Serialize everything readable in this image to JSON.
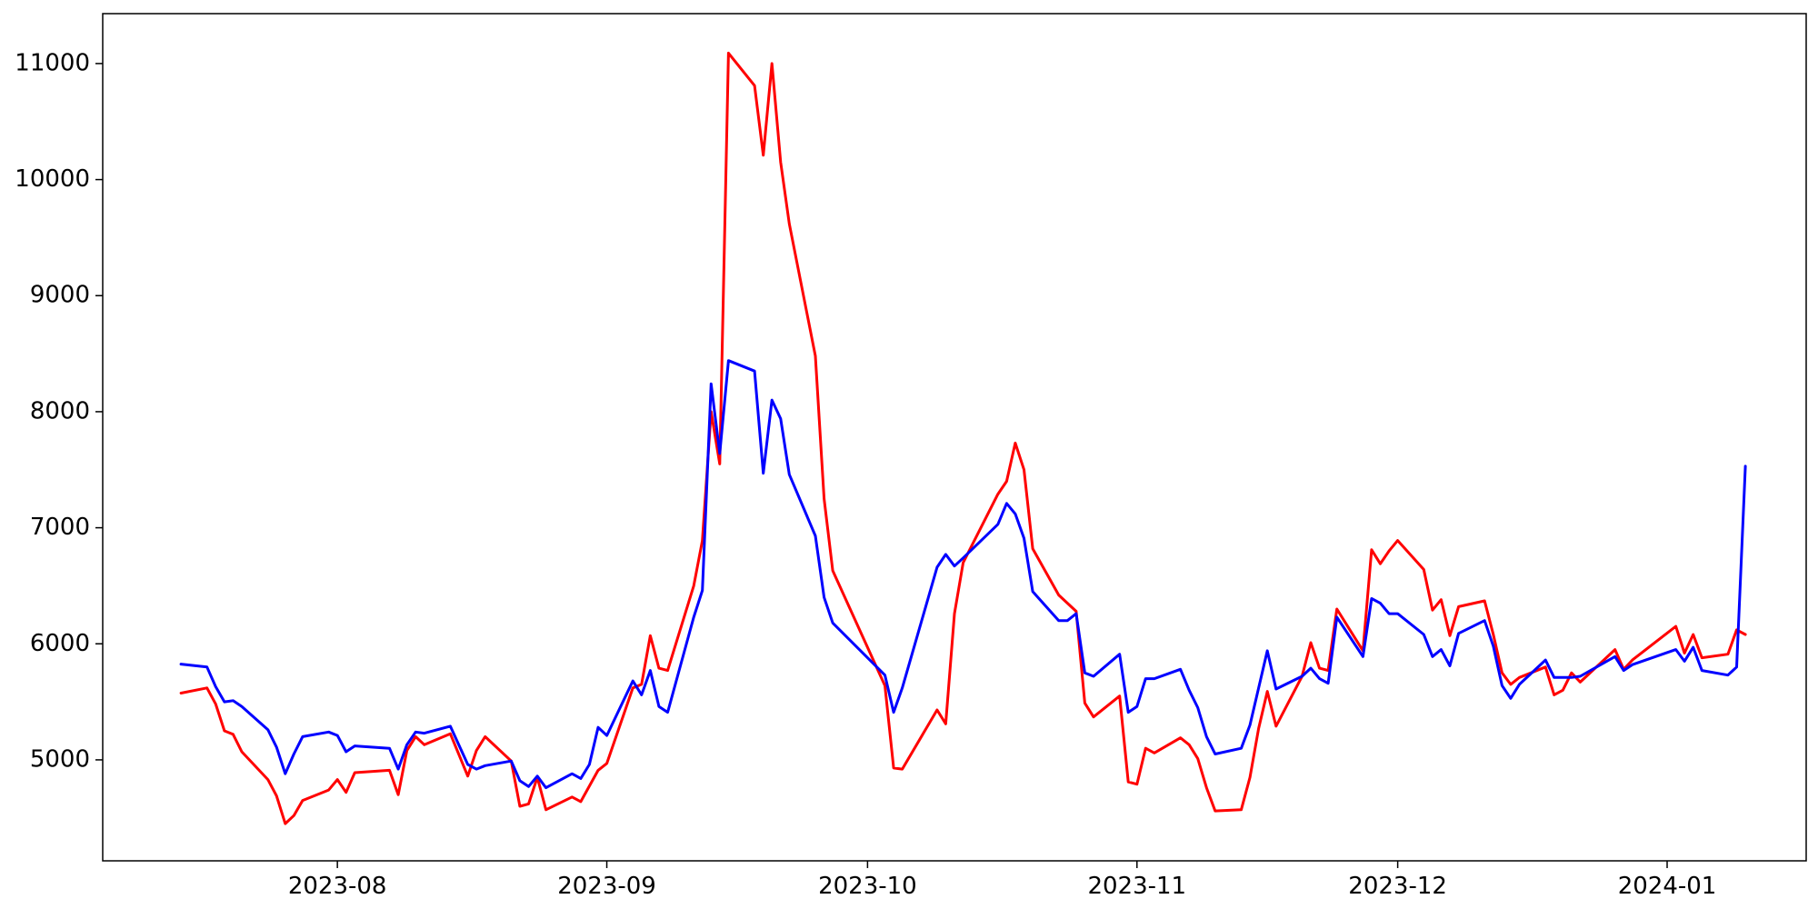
{
  "chart_data": {
    "type": "line",
    "title": "",
    "xlabel": "",
    "ylabel": "",
    "x_axis": {
      "type": "date",
      "range": [
        "2023-07-05",
        "2024-01-17"
      ],
      "ticks": [
        {
          "date": "2023-08-01",
          "label": "2023-08"
        },
        {
          "date": "2023-09-01",
          "label": "2023-09"
        },
        {
          "date": "2023-10-01",
          "label": "2023-10"
        },
        {
          "date": "2023-11-01",
          "label": "2023-11"
        },
        {
          "date": "2023-12-01",
          "label": "2023-12"
        },
        {
          "date": "2024-01-01",
          "label": "2024-01"
        }
      ]
    },
    "y_axis": {
      "range": [
        4130,
        11430
      ],
      "ticks": [
        {
          "value": 5000,
          "label": "5000"
        },
        {
          "value": 6000,
          "label": "6000"
        },
        {
          "value": 7000,
          "label": "7000"
        },
        {
          "value": 8000,
          "label": "8000"
        },
        {
          "value": 9000,
          "label": "9000"
        },
        {
          "value": 10000,
          "label": "10000"
        },
        {
          "value": 11000,
          "label": "11000"
        }
      ]
    },
    "grid": false,
    "legend": "none",
    "series": [
      {
        "color": "#ff0000",
        "points": [
          [
            "2023-07-14",
            5575
          ],
          [
            "2023-07-17",
            5620
          ],
          [
            "2023-07-18",
            5480
          ],
          [
            "2023-07-19",
            5250
          ],
          [
            "2023-07-20",
            5220
          ],
          [
            "2023-07-21",
            5070
          ],
          [
            "2023-07-24",
            4830
          ],
          [
            "2023-07-25",
            4690
          ],
          [
            "2023-07-26",
            4450
          ],
          [
            "2023-07-27",
            4520
          ],
          [
            "2023-07-28",
            4650
          ],
          [
            "2023-07-31",
            4740
          ],
          [
            "2023-08-01",
            4830
          ],
          [
            "2023-08-02",
            4720
          ],
          [
            "2023-08-03",
            4890
          ],
          [
            "2023-08-07",
            4910
          ],
          [
            "2023-08-08",
            4700
          ],
          [
            "2023-08-09",
            5080
          ],
          [
            "2023-08-10",
            5200
          ],
          [
            "2023-08-11",
            5130
          ],
          [
            "2023-08-14",
            5225
          ],
          [
            "2023-08-16",
            4860
          ],
          [
            "2023-08-17",
            5080
          ],
          [
            "2023-08-18",
            5200
          ],
          [
            "2023-08-21",
            4990
          ],
          [
            "2023-08-22",
            4600
          ],
          [
            "2023-08-23",
            4620
          ],
          [
            "2023-08-24",
            4850
          ],
          [
            "2023-08-25",
            4570
          ],
          [
            "2023-08-28",
            4680
          ],
          [
            "2023-08-29",
            4640
          ],
          [
            "2023-08-31",
            4910
          ],
          [
            "2023-09-01",
            4970
          ],
          [
            "2023-09-04",
            5620
          ],
          [
            "2023-09-05",
            5650
          ],
          [
            "2023-09-06",
            6070
          ],
          [
            "2023-09-07",
            5790
          ],
          [
            "2023-09-08",
            5770
          ],
          [
            "2023-09-11",
            6500
          ],
          [
            "2023-09-12",
            6890
          ],
          [
            "2023-09-13",
            8000
          ],
          [
            "2023-09-14",
            7550
          ],
          [
            "2023-09-15",
            11090
          ],
          [
            "2023-09-18",
            10810
          ],
          [
            "2023-09-19",
            10210
          ],
          [
            "2023-09-20",
            11000
          ],
          [
            "2023-09-21",
            10150
          ],
          [
            "2023-09-22",
            9620
          ],
          [
            "2023-09-25",
            8480
          ],
          [
            "2023-09-26",
            7250
          ],
          [
            "2023-09-27",
            6630
          ],
          [
            "2023-10-03",
            5640
          ],
          [
            "2023-10-04",
            4930
          ],
          [
            "2023-10-05",
            4920
          ],
          [
            "2023-10-09",
            5430
          ],
          [
            "2023-10-10",
            5310
          ],
          [
            "2023-10-11",
            6260
          ],
          [
            "2023-10-12",
            6700
          ],
          [
            "2023-10-16",
            7290
          ],
          [
            "2023-10-17",
            7400
          ],
          [
            "2023-10-18",
            7730
          ],
          [
            "2023-10-19",
            7500
          ],
          [
            "2023-10-20",
            6820
          ],
          [
            "2023-10-23",
            6420
          ],
          [
            "2023-10-25",
            6280
          ],
          [
            "2023-10-26",
            5490
          ],
          [
            "2023-10-27",
            5370
          ],
          [
            "2023-10-30",
            5550
          ],
          [
            "2023-10-31",
            4810
          ],
          [
            "2023-11-01",
            4790
          ],
          [
            "2023-11-02",
            5100
          ],
          [
            "2023-11-03",
            5060
          ],
          [
            "2023-11-06",
            5190
          ],
          [
            "2023-11-07",
            5130
          ],
          [
            "2023-11-08",
            5010
          ],
          [
            "2023-11-09",
            4760
          ],
          [
            "2023-11-10",
            4560
          ],
          [
            "2023-11-13",
            4570
          ],
          [
            "2023-11-14",
            4850
          ],
          [
            "2023-11-15",
            5270
          ],
          [
            "2023-11-16",
            5590
          ],
          [
            "2023-11-17",
            5290
          ],
          [
            "2023-11-20",
            5720
          ],
          [
            "2023-11-21",
            6010
          ],
          [
            "2023-11-22",
            5790
          ],
          [
            "2023-11-23",
            5770
          ],
          [
            "2023-11-24",
            6300
          ],
          [
            "2023-11-27",
            5940
          ],
          [
            "2023-11-28",
            6810
          ],
          [
            "2023-11-29",
            6690
          ],
          [
            "2023-11-30",
            6800
          ],
          [
            "2023-12-01",
            6890
          ],
          [
            "2023-12-04",
            6640
          ],
          [
            "2023-12-05",
            6290
          ],
          [
            "2023-12-06",
            6380
          ],
          [
            "2023-12-07",
            6070
          ],
          [
            "2023-12-08",
            6320
          ],
          [
            "2023-12-11",
            6370
          ],
          [
            "2023-12-12",
            6080
          ],
          [
            "2023-12-13",
            5750
          ],
          [
            "2023-12-14",
            5650
          ],
          [
            "2023-12-15",
            5710
          ],
          [
            "2023-12-18",
            5800
          ],
          [
            "2023-12-19",
            5560
          ],
          [
            "2023-12-20",
            5600
          ],
          [
            "2023-12-21",
            5750
          ],
          [
            "2023-12-22",
            5670
          ],
          [
            "2023-12-26",
            5950
          ],
          [
            "2023-12-27",
            5780
          ],
          [
            "2023-12-28",
            5860
          ],
          [
            "2024-01-02",
            6150
          ],
          [
            "2024-01-03",
            5920
          ],
          [
            "2024-01-04",
            6080
          ],
          [
            "2024-01-05",
            5880
          ],
          [
            "2024-01-08",
            5910
          ],
          [
            "2024-01-09",
            6120
          ],
          [
            "2024-01-10",
            6080
          ]
        ]
      },
      {
        "color": "#0000ff",
        "points": [
          [
            "2023-07-14",
            5825
          ],
          [
            "2023-07-17",
            5800
          ],
          [
            "2023-07-18",
            5630
          ],
          [
            "2023-07-19",
            5500
          ],
          [
            "2023-07-20",
            5510
          ],
          [
            "2023-07-21",
            5460
          ],
          [
            "2023-07-24",
            5260
          ],
          [
            "2023-07-25",
            5110
          ],
          [
            "2023-07-26",
            4880
          ],
          [
            "2023-07-27",
            5050
          ],
          [
            "2023-07-28",
            5200
          ],
          [
            "2023-07-31",
            5240
          ],
          [
            "2023-08-01",
            5210
          ],
          [
            "2023-08-02",
            5070
          ],
          [
            "2023-08-03",
            5120
          ],
          [
            "2023-08-07",
            5100
          ],
          [
            "2023-08-08",
            4920
          ],
          [
            "2023-08-09",
            5130
          ],
          [
            "2023-08-10",
            5240
          ],
          [
            "2023-08-11",
            5230
          ],
          [
            "2023-08-14",
            5290
          ],
          [
            "2023-08-16",
            4960
          ],
          [
            "2023-08-17",
            4920
          ],
          [
            "2023-08-18",
            4950
          ],
          [
            "2023-08-21",
            4990
          ],
          [
            "2023-08-22",
            4820
          ],
          [
            "2023-08-23",
            4770
          ],
          [
            "2023-08-24",
            4860
          ],
          [
            "2023-08-25",
            4760
          ],
          [
            "2023-08-28",
            4880
          ],
          [
            "2023-08-29",
            4840
          ],
          [
            "2023-08-30",
            4960
          ],
          [
            "2023-08-31",
            5280
          ],
          [
            "2023-09-01",
            5210
          ],
          [
            "2023-09-04",
            5680
          ],
          [
            "2023-09-05",
            5560
          ],
          [
            "2023-09-06",
            5770
          ],
          [
            "2023-09-07",
            5460
          ],
          [
            "2023-09-08",
            5410
          ],
          [
            "2023-09-11",
            6230
          ],
          [
            "2023-09-12",
            6460
          ],
          [
            "2023-09-13",
            8240
          ],
          [
            "2023-09-14",
            7640
          ],
          [
            "2023-09-15",
            8440
          ],
          [
            "2023-09-18",
            8350
          ],
          [
            "2023-09-19",
            7470
          ],
          [
            "2023-09-20",
            8100
          ],
          [
            "2023-09-21",
            7940
          ],
          [
            "2023-09-22",
            7460
          ],
          [
            "2023-09-25",
            6930
          ],
          [
            "2023-09-26",
            6400
          ],
          [
            "2023-09-27",
            6180
          ],
          [
            "2023-10-03",
            5730
          ],
          [
            "2023-10-04",
            5410
          ],
          [
            "2023-10-05",
            5620
          ],
          [
            "2023-10-09",
            6660
          ],
          [
            "2023-10-10",
            6770
          ],
          [
            "2023-10-11",
            6670
          ],
          [
            "2023-10-12",
            6740
          ],
          [
            "2023-10-16",
            7030
          ],
          [
            "2023-10-17",
            7210
          ],
          [
            "2023-10-18",
            7120
          ],
          [
            "2023-10-19",
            6910
          ],
          [
            "2023-10-20",
            6450
          ],
          [
            "2023-10-23",
            6200
          ],
          [
            "2023-10-24",
            6200
          ],
          [
            "2023-10-25",
            6260
          ],
          [
            "2023-10-26",
            5750
          ],
          [
            "2023-10-27",
            5720
          ],
          [
            "2023-10-30",
            5910
          ],
          [
            "2023-10-31",
            5410
          ],
          [
            "2023-11-01",
            5460
          ],
          [
            "2023-11-02",
            5700
          ],
          [
            "2023-11-03",
            5700
          ],
          [
            "2023-11-06",
            5780
          ],
          [
            "2023-11-07",
            5600
          ],
          [
            "2023-11-08",
            5450
          ],
          [
            "2023-11-09",
            5200
          ],
          [
            "2023-11-10",
            5050
          ],
          [
            "2023-11-13",
            5100
          ],
          [
            "2023-11-14",
            5300
          ],
          [
            "2023-11-16",
            5940
          ],
          [
            "2023-11-17",
            5610
          ],
          [
            "2023-11-20",
            5720
          ],
          [
            "2023-11-21",
            5790
          ],
          [
            "2023-11-22",
            5700
          ],
          [
            "2023-11-23",
            5660
          ],
          [
            "2023-11-24",
            6230
          ],
          [
            "2023-11-27",
            5890
          ],
          [
            "2023-11-28",
            6390
          ],
          [
            "2023-11-29",
            6350
          ],
          [
            "2023-11-30",
            6260
          ],
          [
            "2023-12-01",
            6260
          ],
          [
            "2023-12-04",
            6080
          ],
          [
            "2023-12-05",
            5890
          ],
          [
            "2023-12-06",
            5950
          ],
          [
            "2023-12-07",
            5810
          ],
          [
            "2023-12-08",
            6090
          ],
          [
            "2023-12-11",
            6200
          ],
          [
            "2023-12-12",
            5980
          ],
          [
            "2023-12-13",
            5640
          ],
          [
            "2023-12-14",
            5530
          ],
          [
            "2023-12-15",
            5650
          ],
          [
            "2023-12-18",
            5860
          ],
          [
            "2023-12-19",
            5710
          ],
          [
            "2023-12-21",
            5710
          ],
          [
            "2023-12-22",
            5720
          ],
          [
            "2023-12-26",
            5890
          ],
          [
            "2023-12-27",
            5770
          ],
          [
            "2023-12-28",
            5820
          ],
          [
            "2024-01-02",
            5950
          ],
          [
            "2024-01-03",
            5850
          ],
          [
            "2024-01-04",
            5970
          ],
          [
            "2024-01-05",
            5770
          ],
          [
            "2024-01-08",
            5730
          ],
          [
            "2024-01-09",
            5800
          ],
          [
            "2024-01-10",
            7530
          ]
        ]
      }
    ]
  }
}
